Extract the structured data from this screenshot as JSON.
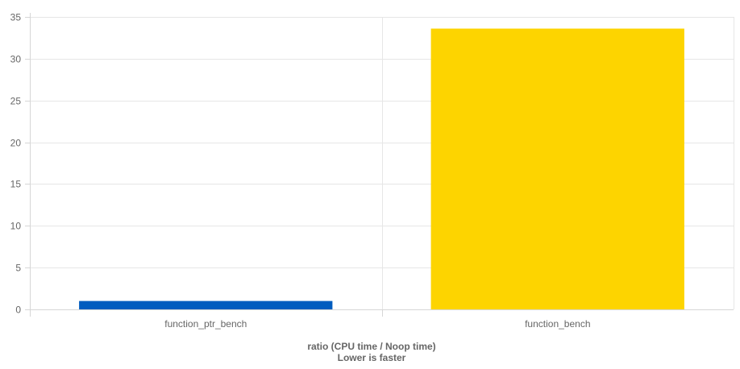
{
  "chart_data": {
    "type": "bar",
    "categories": [
      "function_ptr_bench",
      "function_bench"
    ],
    "values": [
      1.0,
      33.6
    ],
    "colors": [
      "#005cbf",
      "#fdd400"
    ],
    "xlabel_lines": [
      "ratio (CPU time / Noop time)",
      "Lower is faster"
    ],
    "ylabel": "",
    "ylim": [
      0,
      35
    ],
    "yticks": [
      0,
      5,
      10,
      15,
      20,
      25,
      30,
      35
    ],
    "grid": true,
    "legend": "none"
  }
}
